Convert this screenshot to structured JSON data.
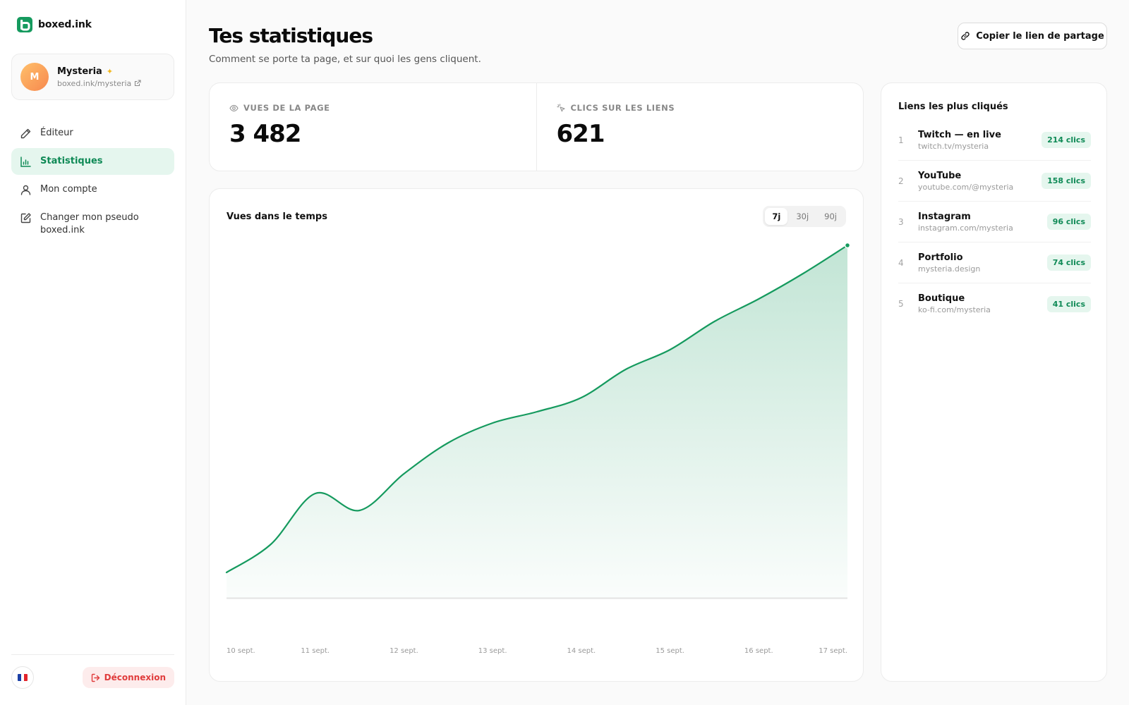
{
  "brand": {
    "name": "boxed.ink"
  },
  "profile": {
    "initial": "M",
    "name": "Mysteria",
    "url": "boxed.ink/mysteria"
  },
  "nav": [
    {
      "label": "Éditeur",
      "icon": "pencil-icon",
      "active": false
    },
    {
      "label": "Statistiques",
      "icon": "bar-chart-icon",
      "active": true
    },
    {
      "label": "Mon compte",
      "icon": "user-icon",
      "active": false
    },
    {
      "label": "Changer mon pseudo boxed.ink",
      "icon": "edit-square-icon",
      "active": false
    }
  ],
  "footer": {
    "logout_label": "Déconnexion",
    "language": "FR"
  },
  "header": {
    "title": "Tes statistiques",
    "subtitle": "Comment se porte ta page, et sur quoi les gens cliquent.",
    "share_label": "Copier le lien de partage"
  },
  "stats": {
    "views_label": "VUES DE LA PAGE",
    "views_value": "3 482",
    "clicks_label": "CLICS SUR LES LIENS",
    "clicks_value": "621"
  },
  "chart": {
    "title": "Vues dans le temps",
    "ranges": [
      "7j",
      "30j",
      "90j"
    ],
    "active_range": "7j"
  },
  "chart_data": {
    "type": "area",
    "title": "Vues dans le temps",
    "xlabel": "",
    "ylabel": "",
    "categories": [
      "10 sept.",
      "11 sept.",
      "12 sept.",
      "13 sept.",
      "14 sept.",
      "15 sept.",
      "16 sept.",
      "17 sept."
    ],
    "x": [
      0,
      0.5,
      1,
      1.5,
      2,
      2.5,
      3,
      3.5,
      4,
      4.5,
      5,
      5.5,
      6,
      6.5,
      7
    ],
    "values": [
      9,
      19,
      37,
      31,
      44,
      55,
      62,
      66,
      71,
      81,
      88,
      98,
      106,
      115,
      125
    ],
    "ylim": [
      0,
      130
    ],
    "grid": false,
    "legend": "none",
    "color": "#159a5e"
  },
  "top_links": {
    "title": "Liens les plus cliqués",
    "items": [
      {
        "rank": "1",
        "name": "Twitch — en live",
        "url": "twitch.tv/mysteria",
        "clicks": "214 clics"
      },
      {
        "rank": "2",
        "name": "YouTube",
        "url": "youtube.com/@mysteria",
        "clicks": "158 clics"
      },
      {
        "rank": "3",
        "name": "Instagram",
        "url": "instagram.com/mysteria",
        "clicks": "96 clics"
      },
      {
        "rank": "4",
        "name": "Portfolio",
        "url": "mysteria.design",
        "clicks": "74 clics"
      },
      {
        "rank": "5",
        "name": "Boutique",
        "url": "ko-fi.com/mysteria",
        "clicks": "41 clics"
      }
    ]
  },
  "colors": {
    "accent": "#159a5e",
    "accent_soft": "#e5f6ee",
    "danger": "#e03c3c"
  }
}
